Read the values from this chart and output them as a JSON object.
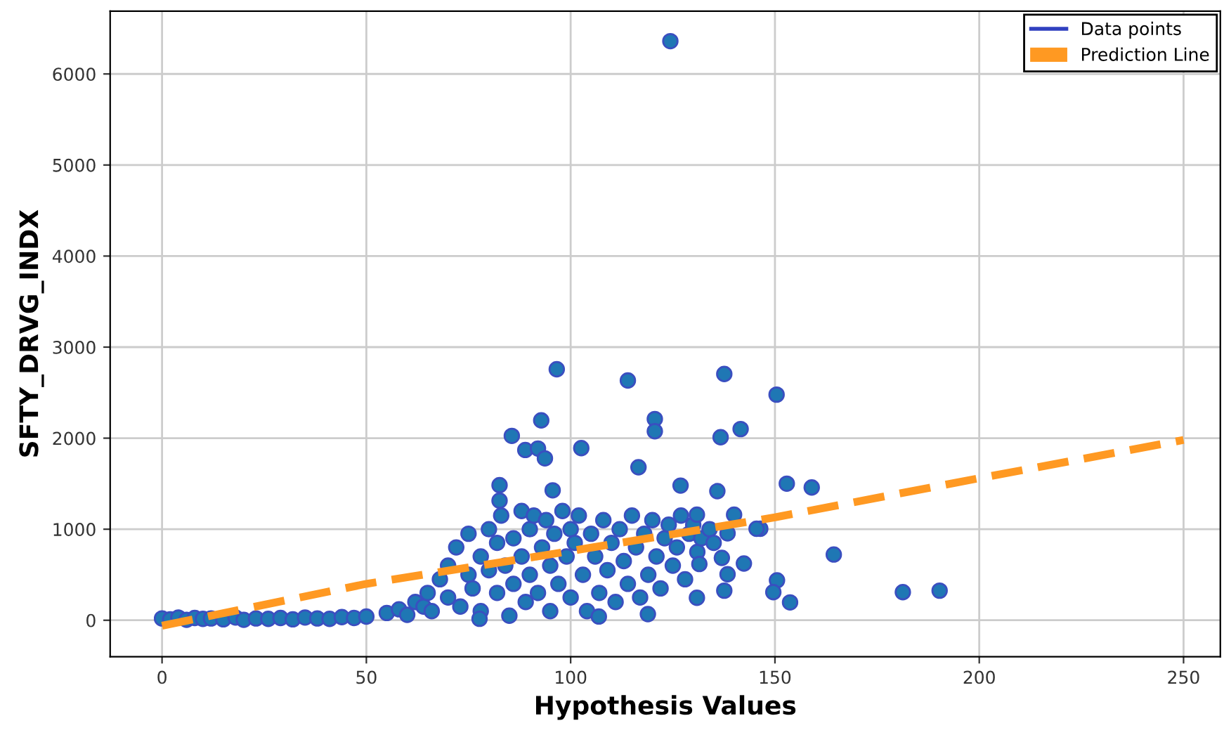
{
  "chart_data": {
    "type": "scatter",
    "xlabel": "Hypothesis Values",
    "ylabel": "SFTY_DRVG_INDX",
    "xlim": [
      -12.7,
      259
    ],
    "ylim": [
      -400,
      6690
    ],
    "xticks": [
      0,
      50,
      100,
      150,
      200,
      250
    ],
    "yticks": [
      0,
      1000,
      2000,
      3000,
      4000,
      5000,
      6000
    ],
    "grid": true,
    "legend": "top right",
    "series": [
      {
        "name": "Data points",
        "marker": "circle",
        "color": "#1f77b4",
        "x": [
          0,
          2,
          4,
          6,
          8,
          10,
          12,
          15,
          18,
          20,
          23,
          26,
          29,
          32,
          35,
          38,
          41,
          44,
          47,
          50,
          55,
          58,
          60,
          62,
          64,
          65,
          66,
          68,
          70,
          70,
          72,
          73,
          75,
          75,
          76,
          78,
          78,
          80,
          80,
          82,
          82,
          83,
          84,
          85,
          86,
          86,
          88,
          88,
          89,
          90,
          90,
          91,
          92,
          93,
          94,
          95,
          95,
          96,
          97,
          98,
          99,
          100,
          100,
          101,
          102,
          103,
          104,
          105,
          106,
          107,
          108,
          109,
          110,
          111,
          112,
          113,
          114,
          115,
          116,
          117,
          118,
          119,
          120,
          121,
          122,
          123,
          124,
          125,
          126,
          127,
          128,
          129,
          130,
          131,
          132,
          134,
          135,
          124.4,
          96.6,
          114,
          137.6,
          150.4,
          92.8,
          120.6,
          120.6,
          141.6,
          136.7,
          85.6,
          88.9,
          92,
          93.7,
          102.6,
          116.6,
          82.6,
          82.6,
          95.6,
          126.9,
          135.9,
          152.9,
          159,
          164.4,
          150.5,
          149.6,
          153.7,
          181.3,
          190.3,
          146.4,
          130.9,
          140,
          145.5,
          138.4,
          131.5,
          137,
          142.4,
          138.4,
          137.6,
          130.9,
          106.9,
          118.9,
          77.7
        ],
        "values": [
          20,
          10,
          30,
          5,
          25,
          15,
          20,
          10,
          30,
          5,
          20,
          15,
          25,
          10,
          30,
          20,
          15,
          35,
          25,
          40,
          80,
          120,
          60,
          200,
          150,
          300,
          100,
          450,
          250,
          600,
          800,
          150,
          950,
          500,
          350,
          700,
          100,
          1000,
          550,
          850,
          300,
          1150,
          600,
          50,
          900,
          400,
          1200,
          700,
          200,
          1000,
          500,
          1150,
          300,
          800,
          1100,
          600,
          100,
          950,
          400,
          1200,
          700,
          1000,
          250,
          850,
          1150,
          500,
          100,
          950,
          700,
          300,
          1100,
          550,
          850,
          200,
          1000,
          650,
          400,
          1150,
          800,
          250,
          950,
          500,
          1100,
          700,
          350,
          900,
          1050,
          600,
          800,
          1150,
          450,
          950,
          1050,
          750,
          900,
          1000,
          850,
          6360,
          2757,
          2633,
          2705,
          2478,
          2195,
          2210,
          2076,
          2100,
          2010,
          2025,
          1870,
          1886,
          1778,
          1891,
          1680,
          1484,
          1314,
          1427,
          1479,
          1418,
          1500,
          1458,
          722,
          438,
          309,
          196,
          309,
          325,
          1005,
          1160,
          1160,
          1005,
          954,
          618,
          685,
          623,
          505,
          325,
          247,
          41,
          67,
          16
        ]
      },
      {
        "name": "Prediction Line",
        "type": "line",
        "color": "#ff9922",
        "line_style": "dashed",
        "x": [
          0,
          50,
          100,
          150,
          200,
          250
        ],
        "values": [
          -60,
          400,
          760,
          1130,
          1560,
          1980
        ]
      }
    ]
  }
}
